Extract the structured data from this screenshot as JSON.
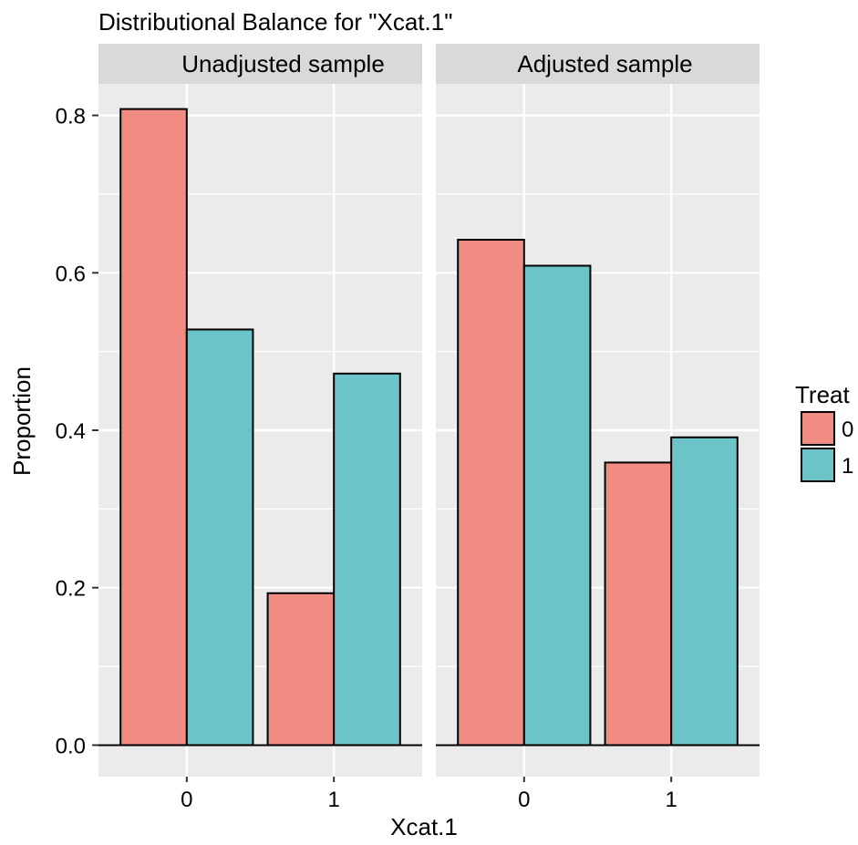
{
  "chart_data": {
    "type": "bar",
    "title": "Distributional Balance for \"Xcat.1\"",
    "xlabel": "Xcat.1",
    "ylabel": "Proportion",
    "ylim": [
      -0.04,
      0.84
    ],
    "yticks": [
      0.0,
      0.2,
      0.4,
      0.6,
      0.8
    ],
    "ytick_labels": [
      "0.0",
      "0.2",
      "0.4",
      "0.6",
      "0.8"
    ],
    "categories": [
      "0",
      "1"
    ],
    "grid": true,
    "legend": {
      "title": "Treat",
      "position": "right",
      "entries": [
        {
          "label": "0",
          "color": "#F08C82"
        },
        {
          "label": "1",
          "color": "#6CC4C8"
        }
      ]
    },
    "panels": [
      {
        "label": "Unadjusted sample",
        "series": [
          {
            "name": "0",
            "values": [
              0.808,
              0.193
            ]
          },
          {
            "name": "1",
            "values": [
              0.528,
              0.472
            ]
          }
        ]
      },
      {
        "label": "Adjusted sample",
        "series": [
          {
            "name": "0",
            "values": [
              0.642,
              0.359
            ]
          },
          {
            "name": "1",
            "values": [
              0.609,
              0.391
            ]
          }
        ]
      }
    ]
  },
  "colors": {
    "panel_bg": "#EBEBEB",
    "strip_bg": "#D9D9D9",
    "grid_major": "#FFFFFF",
    "tick_color": "#333333",
    "bar_stroke": "#000000"
  }
}
